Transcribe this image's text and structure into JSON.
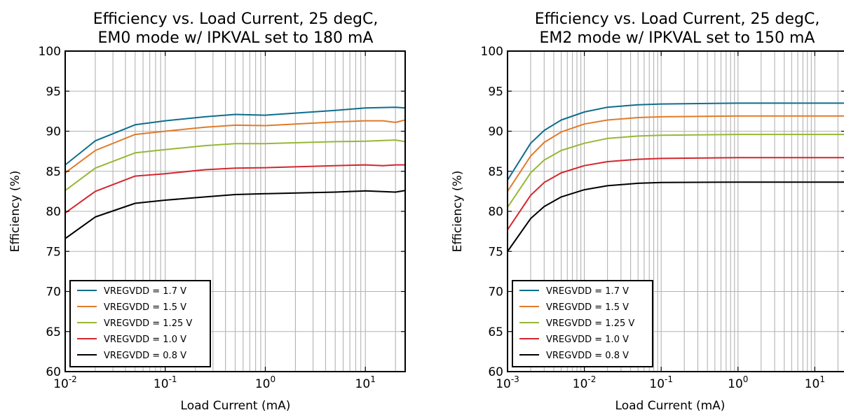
{
  "chart_data": [
    {
      "type": "line",
      "title_lines": [
        "Efficiency vs. Load Current, 25 degC,",
        "EM0 mode w/ IPKVAL set to 180 mA"
      ],
      "xlabel": "Load Current (mA)",
      "ylabel": "Efficiency (%)",
      "xscale": "log",
      "xlim": [
        0.01,
        25
      ],
      "ylim": [
        60,
        100
      ],
      "yticks": [
        60,
        65,
        70,
        75,
        80,
        85,
        90,
        95,
        100
      ],
      "xticks": [
        {
          "value": 0.01,
          "base": "10",
          "exp": "-2"
        },
        {
          "value": 0.1,
          "base": "10",
          "exp": "-1"
        },
        {
          "value": 1,
          "base": "10",
          "exp": "0"
        },
        {
          "value": 10,
          "base": "10",
          "exp": "1"
        }
      ],
      "grid": true,
      "legend": "lower-left",
      "series": [
        {
          "name": "VREGVDD = 1.7 V",
          "color": "#0f6d8b",
          "x": [
            0.01,
            0.02,
            0.05,
            0.1,
            0.25,
            0.5,
            1,
            5,
            10,
            20,
            25
          ],
          "y": [
            85.8,
            88.8,
            90.8,
            91.3,
            91.8,
            92.1,
            92.0,
            92.6,
            92.9,
            93.0,
            92.9
          ]
        },
        {
          "name": "VREGVDD = 1.5 V",
          "color": "#e07b2a",
          "x": [
            0.01,
            0.02,
            0.05,
            0.1,
            0.25,
            0.5,
            1,
            5,
            10,
            15,
            20,
            25
          ],
          "y": [
            84.8,
            87.6,
            89.6,
            90.0,
            90.5,
            90.75,
            90.7,
            91.15,
            91.3,
            91.3,
            91.1,
            91.4
          ]
        },
        {
          "name": "VREGVDD = 1.25 V",
          "color": "#97b736",
          "x": [
            0.01,
            0.02,
            0.05,
            0.1,
            0.25,
            0.5,
            1,
            5,
            10,
            20,
            25
          ],
          "y": [
            82.6,
            85.4,
            87.3,
            87.7,
            88.2,
            88.45,
            88.45,
            88.7,
            88.75,
            88.9,
            88.7
          ]
        },
        {
          "name": "VREGVDD = 1.0 V",
          "color": "#d3272f",
          "x": [
            0.01,
            0.02,
            0.05,
            0.1,
            0.25,
            0.5,
            1,
            5,
            10,
            15,
            20,
            25
          ],
          "y": [
            79.8,
            82.5,
            84.4,
            84.7,
            85.2,
            85.4,
            85.45,
            85.7,
            85.8,
            85.7,
            85.8,
            85.8
          ]
        },
        {
          "name": "VREGVDD = 0.8 V",
          "color": "#000000",
          "x": [
            0.01,
            0.02,
            0.05,
            0.1,
            0.25,
            0.5,
            1,
            5,
            10,
            20,
            25
          ],
          "y": [
            76.6,
            79.3,
            81.0,
            81.4,
            81.8,
            82.1,
            82.2,
            82.4,
            82.55,
            82.4,
            82.6
          ]
        }
      ]
    },
    {
      "type": "line",
      "title_lines": [
        "Efficiency vs. Load Current, 25 degC,",
        "EM2 mode w/ IPKVAL set to 150 mA"
      ],
      "xlabel": "Load Current (mA)",
      "ylabel": "Efficiency (%)",
      "xscale": "log",
      "xlim": [
        0.001,
        25
      ],
      "ylim": [
        60,
        100
      ],
      "yticks": [
        60,
        65,
        70,
        75,
        80,
        85,
        90,
        95,
        100
      ],
      "xticks": [
        {
          "value": 0.001,
          "base": "10",
          "exp": "-3"
        },
        {
          "value": 0.01,
          "base": "10",
          "exp": "-2"
        },
        {
          "value": 0.1,
          "base": "10",
          "exp": "-1"
        },
        {
          "value": 1,
          "base": "10",
          "exp": "0"
        },
        {
          "value": 10,
          "base": "10",
          "exp": "1"
        }
      ],
      "grid": true,
      "legend": "lower-left",
      "series": [
        {
          "name": "VREGVDD = 1.7 V",
          "color": "#0f6d8b",
          "x": [
            0.001,
            0.002,
            0.003,
            0.005,
            0.01,
            0.02,
            0.05,
            0.1,
            1,
            10,
            25
          ],
          "y": [
            83.9,
            88.5,
            90.1,
            91.4,
            92.4,
            93.0,
            93.3,
            93.4,
            93.5,
            93.5,
            93.5
          ]
        },
        {
          "name": "VREGVDD = 1.5 V",
          "color": "#e07b2a",
          "x": [
            0.001,
            0.002,
            0.003,
            0.005,
            0.01,
            0.02,
            0.05,
            0.1,
            1,
            10,
            25
          ],
          "y": [
            82.5,
            86.9,
            88.6,
            89.9,
            90.9,
            91.4,
            91.7,
            91.8,
            91.9,
            91.9,
            91.9
          ]
        },
        {
          "name": "VREGVDD = 1.25 V",
          "color": "#97b736",
          "x": [
            0.001,
            0.002,
            0.003,
            0.005,
            0.01,
            0.02,
            0.05,
            0.1,
            1,
            10,
            25
          ],
          "y": [
            80.5,
            84.8,
            86.4,
            87.6,
            88.5,
            89.1,
            89.4,
            89.5,
            89.6,
            89.6,
            89.6
          ]
        },
        {
          "name": "VREGVDD = 1.0 V",
          "color": "#d3272f",
          "x": [
            0.001,
            0.002,
            0.003,
            0.005,
            0.01,
            0.02,
            0.05,
            0.1,
            1,
            10,
            25
          ],
          "y": [
            77.7,
            82.0,
            83.6,
            84.8,
            85.7,
            86.2,
            86.5,
            86.6,
            86.7,
            86.7,
            86.7
          ]
        },
        {
          "name": "VREGVDD = 0.8 V",
          "color": "#000000",
          "x": [
            0.001,
            0.002,
            0.003,
            0.005,
            0.01,
            0.02,
            0.05,
            0.1,
            1,
            10,
            25
          ],
          "y": [
            75.0,
            79.1,
            80.6,
            81.8,
            82.7,
            83.2,
            83.5,
            83.6,
            83.65,
            83.65,
            83.65
          ]
        }
      ]
    }
  ]
}
